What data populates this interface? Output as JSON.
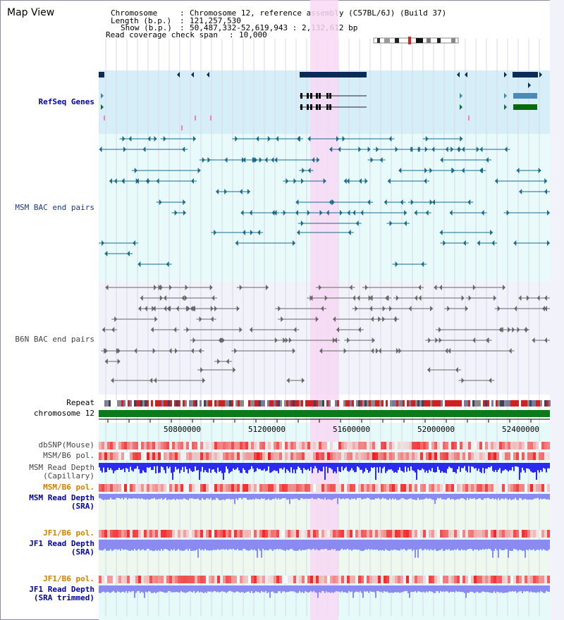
{
  "title": "Map View",
  "info": {
    "chromosome_label": "Chromosome",
    "chromosome_value": "Chromosome 12, reference assembly (C57BL/6J) (Build 37)",
    "length_label": "Length (b.p.)",
    "length_value": "121,257,530",
    "show_label": "Show (b.p.)",
    "show_value": "50,487,332-52,619,943 : 2,132,612 bp",
    "coverage_label": "Read coverage check span",
    "coverage_value": "10,000"
  },
  "tracks": {
    "refseq": "RefSeq Genes",
    "msm_bac": "MSM BAC end pairs",
    "b6n_bac": "B6N BAC end pairs",
    "repeat": "Repeat",
    "chromosome": "chromosome 12",
    "dbsnp": "dbSNP(Mouse)",
    "msm_b6_pol_1": "MSM/B6 pol.",
    "msm_read_depth_cap": "MSM Read Depth\n(Capillary)",
    "msm_b6_pol_2": "MSM/B6 pol.",
    "msm_read_depth_sra": "MSM Read Depth\n(SRA)",
    "jf1_b6_pol_1": "JF1/B6 pol.",
    "jf1_read_depth_sra": "JF1 Read Depth\n(SRA)",
    "jf1_b6_pol_2": "JF1/B6 pol.",
    "jf1_read_depth_trim": "JF1 Read Depth\n(SRA trimmed)"
  },
  "ruler": [
    "50800000",
    "51200000",
    "51600000",
    "52000000",
    "52400000"
  ],
  "colors": {
    "refseq_bg": "#d6eef8",
    "bac_bg": "#e8fafa",
    "highlight": "#f8d8f4",
    "gene_dark": "#0a2a5a",
    "chromosome_bar": "#0a7a1a",
    "depth_dark": "#2a2af0",
    "depth_light": "#8a8af0",
    "msm_bac_line": "#1a6a8a",
    "b6n_bac_line": "#666666"
  }
}
